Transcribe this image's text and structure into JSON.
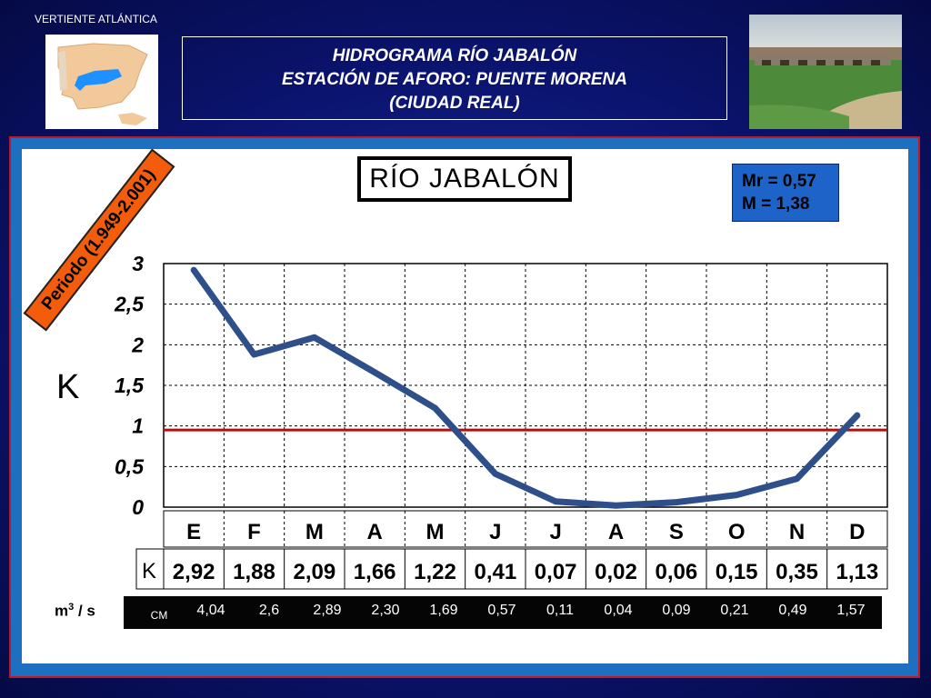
{
  "header": {
    "region": "VERTIENTE  ATLÁNTICA",
    "title_lines": [
      "HIDROGRAMA  RÍO  JABALÓN",
      "ESTACIÓN DE AFORO: PUENTE MORENA",
      "(CIUDAD REAL)"
    ]
  },
  "colors": {
    "background": "#0b1470",
    "panel_border": "#c0182a",
    "panel_blue": "#1d6fc0",
    "line": "#2e4f8a",
    "reference_line": "#b01010",
    "stats_box": "#1e64c8",
    "period_label": "#f25c0a",
    "map_river": "#1e90ff"
  },
  "icons": {
    "map": "iberian-peninsula-map-icon",
    "photo": "puente-morena-bridge-photo"
  },
  "chart_data": {
    "type": "line",
    "title": "RÍO JABALÓN",
    "period": "Periodo (1.949-2.001)",
    "ylabel": "K",
    "ylim": [
      0,
      3
    ],
    "yticks": [
      "0",
      "0,5",
      "1",
      "1,5",
      "2",
      "2,5",
      "3"
    ],
    "ytick_values": [
      0,
      0.5,
      1,
      1.5,
      2,
      2.5,
      3
    ],
    "reference_line": 0.95,
    "grid": true,
    "categories": [
      "E",
      "F",
      "M",
      "A",
      "M",
      "J",
      "J",
      "A",
      "S",
      "O",
      "N",
      "D"
    ],
    "values": [
      2.92,
      1.88,
      2.09,
      1.66,
      1.22,
      0.41,
      0.07,
      0.02,
      0.06,
      0.15,
      0.35,
      1.13
    ],
    "k_header": "K",
    "k_labels": [
      "2,92",
      "1,88",
      "2,09",
      "1,66",
      "1,22",
      "0,41",
      "0,07",
      "0,02",
      "0,06",
      "0,15",
      "0,35",
      "1,13"
    ],
    "stats": {
      "mr": "Mr = 0,57",
      "m": "M = 1,38"
    },
    "units_label": "m",
    "units_sup": "3",
    "units_suffix": " / s",
    "cm_header": "CM",
    "cm_values": [
      "4,04",
      "2,6",
      "2,89",
      "2,30",
      "1,69",
      "0,57",
      "0,11",
      "0,04",
      "0,09",
      "0,21",
      "0,49",
      "1,57"
    ]
  }
}
